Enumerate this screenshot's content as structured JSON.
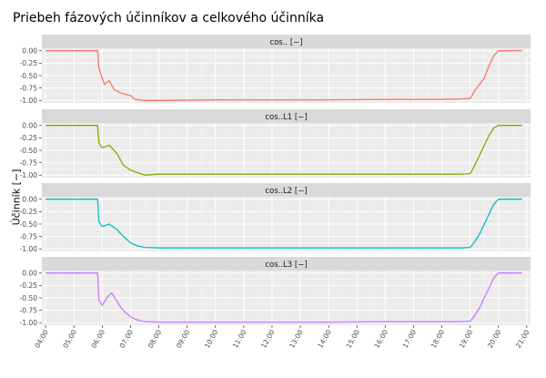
{
  "title": "Priebeh fázových účinníkov a celkového účinníka",
  "chart_data": {
    "type": "line",
    "title": "Priebeh fázových účinníkov a celkového účinníka",
    "xlabel": "",
    "ylabel": "Účinník [−]",
    "x_ticks": [
      "04:00",
      "05:00",
      "06:00",
      "07:00",
      "08:00",
      "09:00",
      "10:00",
      "11:00",
      "12:00",
      "13:00",
      "14:00",
      "15:00",
      "16:00",
      "17:00",
      "18:00",
      "19:00",
      "20:00",
      "21:00"
    ],
    "y_ticks": [
      "0.00",
      "-0.25",
      "-0.50",
      "-0.75",
      "-1.00"
    ],
    "xlim": [
      "03:52",
      "21:00"
    ],
    "ylim": [
      -1.05,
      0.05
    ],
    "grid": true,
    "facet_strip_fill": "#d9d9d9",
    "panel_fill": "#ebebeb",
    "series": [
      {
        "name": "cos.. [−]",
        "color": "#F8766D",
        "x": [
          "04:00",
          "05:50",
          "05:53",
          "06:00",
          "06:05",
          "06:15",
          "06:25",
          "06:40",
          "06:50",
          "07:00",
          "07:10",
          "07:30",
          "08:00",
          "10:00",
          "12:00",
          "14:00",
          "16:00",
          "18:00",
          "18:40",
          "19:00",
          "19:10",
          "19:30",
          "19:40",
          "19:50",
          "20:00",
          "20:50"
        ],
        "y": [
          0.0,
          0.0,
          -0.35,
          -0.55,
          -0.68,
          -0.6,
          -0.78,
          -0.85,
          -0.88,
          -0.9,
          -0.98,
          -1.0,
          -1.0,
          -0.99,
          -0.99,
          -0.99,
          -0.98,
          -0.98,
          -0.97,
          -0.96,
          -0.8,
          -0.55,
          -0.3,
          -0.1,
          0.0,
          0.0
        ]
      },
      {
        "name": "cos..L1 [−]",
        "color": "#7CAE00",
        "x": [
          "04:00",
          "05:50",
          "05:53",
          "06:00",
          "06:15",
          "06:30",
          "06:45",
          "07:00",
          "07:15",
          "07:30",
          "08:00",
          "10:00",
          "12:00",
          "14:00",
          "16:00",
          "18:00",
          "18:40",
          "19:00",
          "19:10",
          "19:20",
          "19:30",
          "19:40",
          "19:50",
          "20:00",
          "20:50"
        ],
        "y": [
          0.0,
          0.0,
          -0.35,
          -0.45,
          -0.4,
          -0.55,
          -0.8,
          -0.9,
          -0.95,
          -1.0,
          -0.98,
          -0.98,
          -0.98,
          -0.98,
          -0.98,
          -0.98,
          -0.98,
          -0.97,
          -0.8,
          -0.6,
          -0.4,
          -0.2,
          -0.05,
          0.0,
          0.0
        ]
      },
      {
        "name": "cos..L2 [−]",
        "color": "#00BFC4",
        "x": [
          "04:00",
          "05:50",
          "05:53",
          "06:00",
          "06:15",
          "06:30",
          "06:45",
          "07:00",
          "07:15",
          "07:30",
          "08:00",
          "10:00",
          "12:00",
          "14:00",
          "16:00",
          "18:00",
          "18:40",
          "19:00",
          "19:10",
          "19:20",
          "19:30",
          "19:40",
          "19:50",
          "20:00",
          "20:50"
        ],
        "y": [
          0.0,
          0.0,
          -0.45,
          -0.55,
          -0.5,
          -0.6,
          -0.75,
          -0.88,
          -0.94,
          -0.97,
          -0.98,
          -0.98,
          -0.98,
          -0.98,
          -0.98,
          -0.98,
          -0.98,
          -0.97,
          -0.85,
          -0.7,
          -0.5,
          -0.3,
          -0.1,
          0.0,
          0.0
        ]
      },
      {
        "name": "cos..L3 [−]",
        "color": "#C77CFF",
        "x": [
          "04:00",
          "05:50",
          "05:53",
          "06:00",
          "06:10",
          "06:20",
          "06:30",
          "06:40",
          "06:50",
          "07:00",
          "07:15",
          "07:30",
          "08:00",
          "10:00",
          "12:00",
          "14:00",
          "16:00",
          "18:00",
          "18:40",
          "19:00",
          "19:10",
          "19:20",
          "19:30",
          "19:40",
          "19:50",
          "20:00",
          "20:50"
        ],
        "y": [
          0.0,
          0.0,
          -0.55,
          -0.65,
          -0.5,
          -0.4,
          -0.55,
          -0.7,
          -0.8,
          -0.88,
          -0.95,
          -0.98,
          -0.99,
          -0.99,
          -0.99,
          -0.99,
          -0.98,
          -0.98,
          -0.98,
          -0.97,
          -0.85,
          -0.7,
          -0.5,
          -0.3,
          -0.1,
          0.0,
          0.0
        ]
      }
    ]
  }
}
